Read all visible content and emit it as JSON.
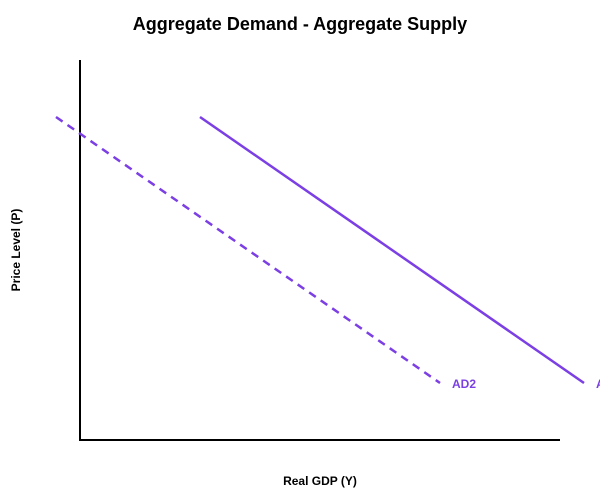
{
  "chart_data": {
    "type": "line",
    "title": "Aggregate Demand - Aggregate Supply",
    "xlabel": "Real GDP (Y)",
    "ylabel": "Price Level (P)",
    "grid": false,
    "legend": "none",
    "axis_ticks": "none",
    "xlim": [
      0,
      100
    ],
    "ylim": [
      0,
      100
    ],
    "series": [
      {
        "name": "AD2",
        "style": "dashed",
        "color": "#7b3fe4",
        "x": [
          -5,
          75
        ],
        "y": [
          85,
          15
        ]
      },
      {
        "name": "AD",
        "style": "solid",
        "color": "#7b3fe4",
        "x": [
          25,
          105
        ],
        "y": [
          85,
          15
        ]
      }
    ]
  }
}
